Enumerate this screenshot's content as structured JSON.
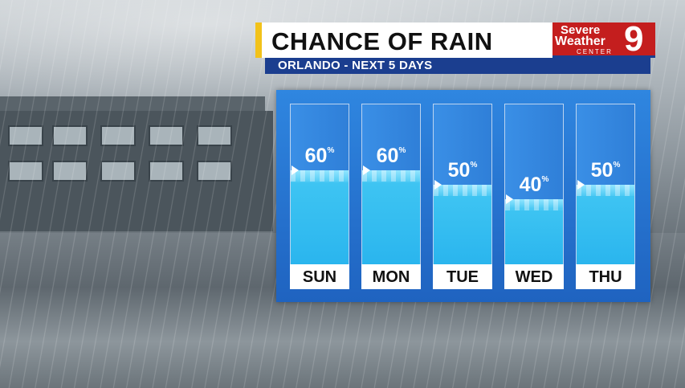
{
  "title": "CHANCE OF RAIN",
  "subtitle": "ORLANDO - NEXT 5 DAYS",
  "logo": {
    "line1": "Severe",
    "line2": "Weather",
    "line3": "CENTER",
    "channel": "9"
  },
  "days": [
    {
      "day": "SUN",
      "pct": "60",
      "unit": "%",
      "value": 0.6
    },
    {
      "day": "MON",
      "pct": "60",
      "unit": "%",
      "value": 0.6
    },
    {
      "day": "TUE",
      "pct": "50",
      "unit": "%",
      "value": 0.5
    },
    {
      "day": "WED",
      "pct": "40",
      "unit": "%",
      "value": 0.4
    },
    {
      "day": "THU",
      "pct": "50",
      "unit": "%",
      "value": 0.5
    }
  ],
  "colors": {
    "panel": "#2a79d4",
    "water": "#2ab5ee",
    "accent": "#f2c21a",
    "logo": "#c41e1e",
    "bar": "#1b3e8f"
  }
}
